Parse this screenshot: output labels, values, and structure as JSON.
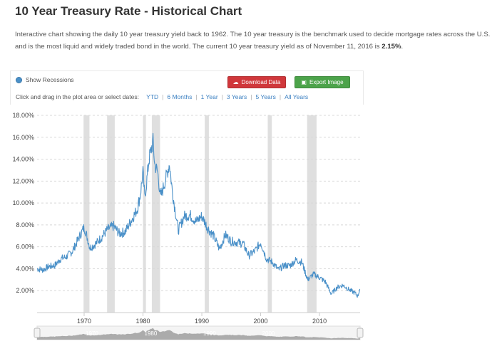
{
  "page": {
    "title": "10 Year Treasury Rate - Historical Chart",
    "description_text": "Interactive chart showing the daily 10 year treasury yield back to 1962. The 10 year treasury is the benchmark used to decide mortgage rates across the U.S. and is the most liquid and widely traded bond in the world. The current 10 year treasury yield as of November 11, 2016 is ",
    "current_value": "2.15%",
    "description_end": "."
  },
  "toolbar": {
    "show_recessions_label": "Show Recessions",
    "download_label": "Download Data",
    "export_label": "Export Image",
    "range_prompt": "Click and drag in the plot area or select dates:",
    "ranges": [
      "YTD",
      "6 Months",
      "1 Year",
      "3 Years",
      "5 Years",
      "All Years"
    ]
  },
  "colors": {
    "line": "#4a90c8",
    "recession": "#d9d9d9",
    "download_button": "#d0373b",
    "export_button": "#4ca34a",
    "link": "#3a7fc1"
  },
  "chart_data": {
    "type": "line",
    "title": "",
    "xlabel": "",
    "ylabel": "",
    "xlim": [
      1962,
      2016.9
    ],
    "ylim": [
      0,
      18
    ],
    "y_ticks": [
      2,
      4,
      6,
      8,
      10,
      12,
      14,
      16,
      18
    ],
    "y_tick_labels": [
      "2.00%",
      "4.00%",
      "6.00%",
      "8.00%",
      "10.00%",
      "12.00%",
      "14.00%",
      "16.00%",
      "18.00%"
    ],
    "x_ticks": [
      1970,
      1980,
      1990,
      2000,
      2010
    ],
    "x_tick_labels": [
      "1970",
      "1980",
      "1990",
      "2000",
      "2010"
    ],
    "grid": true,
    "recessions": [
      [
        1969.9,
        1970.9
      ],
      [
        1973.9,
        1975.2
      ],
      [
        1980.0,
        1980.5
      ],
      [
        1981.5,
        1982.9
      ],
      [
        1990.5,
        1991.2
      ],
      [
        2001.2,
        2001.9
      ],
      [
        2007.9,
        2009.5
      ]
    ],
    "series": [
      {
        "x": [
          1962,
          1963,
          1964,
          1965,
          1966,
          1967,
          1968,
          1969,
          1970,
          1970.5,
          1971,
          1972,
          1973,
          1974,
          1975,
          1976,
          1977,
          1978,
          1979,
          1979.5,
          1980,
          1980.3,
          1980.6,
          1981,
          1981.7,
          1982,
          1982.5,
          1983,
          1984,
          1984.5,
          1985,
          1986,
          1987,
          1988,
          1989,
          1990,
          1991,
          1992,
          1993,
          1994,
          1995,
          1996,
          1997,
          1998,
          1999,
          2000,
          2001,
          2002,
          2003,
          2004,
          2005,
          2006,
          2007,
          2008,
          2009,
          2010,
          2011,
          2012,
          2013,
          2014,
          2015,
          2016,
          2016.5,
          2016.85
        ],
        "y": [
          4.0,
          3.9,
          4.2,
          4.3,
          4.9,
          5.1,
          5.6,
          6.7,
          7.8,
          6.9,
          5.9,
          6.3,
          6.9,
          7.6,
          7.9,
          7.2,
          7.4,
          8.4,
          9.4,
          10.6,
          12.8,
          10.5,
          11.8,
          13.9,
          15.6,
          13.5,
          12.8,
          10.5,
          12.5,
          13.6,
          11.0,
          7.5,
          8.8,
          8.9,
          8.3,
          8.8,
          7.7,
          7.0,
          5.8,
          7.1,
          6.5,
          6.4,
          6.3,
          5.2,
          5.6,
          6.4,
          4.9,
          4.6,
          3.9,
          4.3,
          4.3,
          4.8,
          4.6,
          3.0,
          3.5,
          3.2,
          2.8,
          1.7,
          2.3,
          2.5,
          2.1,
          1.8,
          1.5,
          2.15
        ]
      }
    ]
  },
  "navigator": {
    "labels": [
      "1970",
      "1980",
      "1990",
      "2000"
    ]
  }
}
